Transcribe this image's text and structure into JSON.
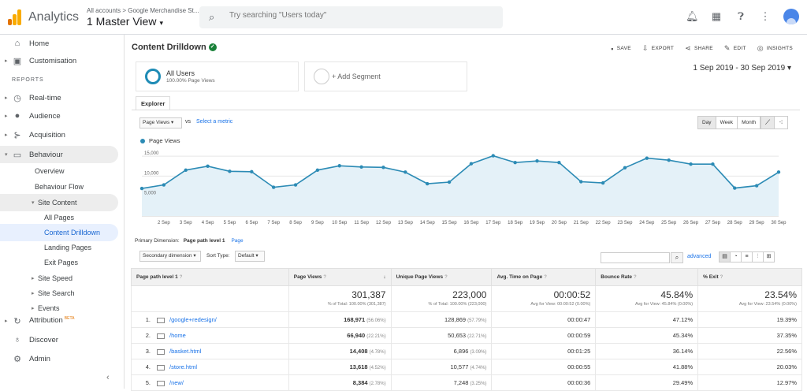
{
  "topbar": {
    "app_name": "Analytics",
    "account_path": "All accounts > Google Merchandise St...",
    "view_name": "1 Master View",
    "search_placeholder": "Try searching \"Users today\""
  },
  "sidebar": {
    "home": "Home",
    "customisation": "Customisation",
    "reports_label": "REPORTS",
    "realtime": "Real-time",
    "audience": "Audience",
    "acquisition": "Acquisition",
    "behaviour": "Behaviour",
    "behaviour_overview": "Overview",
    "behaviour_flow": "Behaviour Flow",
    "site_content": "Site Content",
    "all_pages": "All Pages",
    "content_drilldown": "Content Drilldown",
    "landing_pages": "Landing Pages",
    "exit_pages": "Exit Pages",
    "site_speed": "Site Speed",
    "site_search": "Site Search",
    "events": "Events",
    "attribution": "Attribution",
    "attribution_badge": "BETA",
    "discover": "Discover",
    "admin": "Admin"
  },
  "main": {
    "title": "Content Drilldown",
    "actions": {
      "save": "SAVE",
      "export": "EXPORT",
      "share": "SHARE",
      "edit": "EDIT",
      "insights": "INSIGHTS"
    },
    "segment1": {
      "title": "All Users",
      "subtitle": "100.00% Page Views"
    },
    "segment2": {
      "label": "+ Add Segment"
    },
    "date_range": "1 Sep 2019 - 30 Sep 2019",
    "tab_explorer": "Explorer",
    "metric_select": "Page Views",
    "vs": "vs",
    "select_metric": "Select a metric",
    "periods": [
      "Day",
      "Week",
      "Month"
    ],
    "legend_label": "Page Views",
    "primary_dimension_label": "Primary Dimension:",
    "primary_dimension_value": "Page path level 1",
    "primary_dimension_link": "Page",
    "secondary_dimension": "Secondary dimension",
    "sort_type_label": "Sort Type:",
    "sort_type_value": "Default",
    "advanced": "advanced"
  },
  "chart_data": {
    "type": "area",
    "series": [
      {
        "name": "Page Views",
        "values": [
          6900,
          7800,
          11500,
          12500,
          11200,
          11100,
          7200,
          7800,
          11500,
          12600,
          12300,
          12200,
          11000,
          8100,
          8500,
          13100,
          15100,
          13400,
          13800,
          13400,
          8600,
          8300,
          12100,
          14500,
          14000,
          13000,
          13000,
          7000,
          7600,
          11000
        ]
      }
    ],
    "x_tick_labels": [
      "2 Sep",
      "3 Sep",
      "4 Sep",
      "5 Sep",
      "6 Sep",
      "7 Sep",
      "8 Sep",
      "9 Sep",
      "10 Sep",
      "11 Sep",
      "12 Sep",
      "13 Sep",
      "14 Sep",
      "15 Sep",
      "16 Sep",
      "17 Sep",
      "18 Sep",
      "19 Sep",
      "20 Sep",
      "21 Sep",
      "22 Sep",
      "23 Sep",
      "24 Sep",
      "25 Sep",
      "26 Sep",
      "27 Sep",
      "28 Sep",
      "29 Sep",
      "30 Sep"
    ],
    "y_tick_labels": [
      "15,000",
      "10,000",
      "5,000"
    ],
    "y_ticks": [
      15000,
      10000,
      5000
    ],
    "ylim": [
      0,
      17000
    ],
    "color": "#2c8bb5",
    "fill": "#e4f1f8"
  },
  "table": {
    "headers": [
      "Page path level 1",
      "Page Views",
      "Unique Page Views",
      "Avg. Time on Page",
      "Bounce Rate",
      "% Exit"
    ],
    "totals": [
      {
        "value": "301,387",
        "sub": "% of Total: 100.00% (301,387)"
      },
      {
        "value": "223,000",
        "sub": "% of Total: 100.00% (223,000)"
      },
      {
        "value": "00:00:52",
        "sub": "Avg for View: 00:00:52 (0.00%)"
      },
      {
        "value": "45.84%",
        "sub": "Avg for View: 45.84% (0.00%)"
      },
      {
        "value": "23.54%",
        "sub": "Avg for View: 23.54% (0.00%)"
      }
    ],
    "rows": [
      {
        "idx": "1.",
        "page": "/google+redesign/",
        "pv": "168,971",
        "pv_pct": "(56.06%)",
        "upv": "128,869",
        "upv_pct": "(57.79%)",
        "time": "00:00:47",
        "bounce": "47.12%",
        "exit": "19.39%"
      },
      {
        "idx": "2.",
        "page": "/home",
        "pv": "66,940",
        "pv_pct": "(22.21%)",
        "upv": "50,653",
        "upv_pct": "(22.71%)",
        "time": "00:00:59",
        "bounce": "45.34%",
        "exit": "37.35%"
      },
      {
        "idx": "3.",
        "page": "/basket.html",
        "pv": "14,408",
        "pv_pct": "(4.78%)",
        "upv": "6,896",
        "upv_pct": "(3.09%)",
        "time": "00:01:25",
        "bounce": "36.14%",
        "exit": "22.56%"
      },
      {
        "idx": "4.",
        "page": "/store.html",
        "pv": "13,618",
        "pv_pct": "(4.52%)",
        "upv": "10,577",
        "upv_pct": "(4.74%)",
        "time": "00:00:55",
        "bounce": "41.88%",
        "exit": "20.03%"
      },
      {
        "idx": "5.",
        "page": "/new/",
        "pv": "8,384",
        "pv_pct": "(2.78%)",
        "upv": "7,248",
        "upv_pct": "(3.25%)",
        "time": "00:00:36",
        "bounce": "29.49%",
        "exit": "12.97%"
      }
    ]
  }
}
